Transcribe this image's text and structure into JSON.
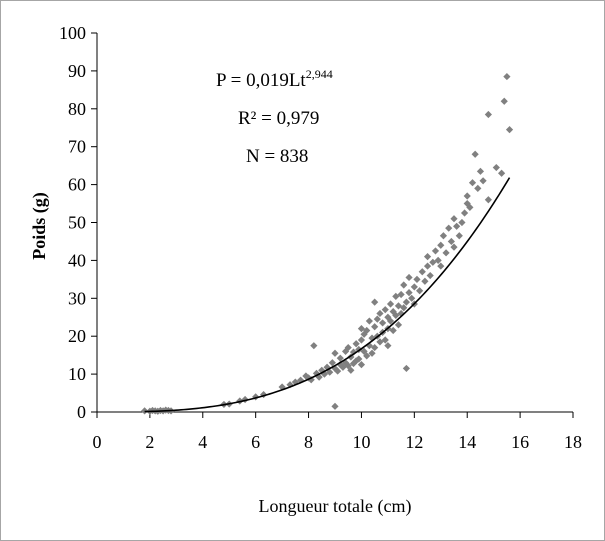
{
  "chart_data": {
    "type": "scatter",
    "title": "",
    "xlabel": "Longueur totale (cm)",
    "ylabel": "Poids (g)",
    "xlim": [
      0,
      18
    ],
    "ylim": [
      0,
      100
    ],
    "xticks": [
      0,
      2,
      4,
      6,
      8,
      10,
      12,
      14,
      16,
      18
    ],
    "yticks": [
      0,
      10,
      20,
      30,
      40,
      50,
      60,
      70,
      80,
      90,
      100
    ],
    "grid": false,
    "legend": "none",
    "marker_color": "#808080",
    "line_color": "#000000",
    "fit": {
      "a": 0.019,
      "b": 2.944,
      "x_range": [
        1.8,
        15.6
      ]
    },
    "annotations": {
      "equation_prefix": "P = 0,019Lt",
      "equation_exponent": "2,944",
      "r2": "R² = 0,979",
      "n": "N = 838"
    },
    "series": [
      {
        "points": [
          [
            1.8,
            0.3
          ],
          [
            2.0,
            0.2
          ],
          [
            2.1,
            0.4
          ],
          [
            2.2,
            0.3
          ],
          [
            2.3,
            0.2
          ],
          [
            2.4,
            0.4
          ],
          [
            2.5,
            0.3
          ],
          [
            2.6,
            0.5
          ],
          [
            2.7,
            0.4
          ],
          [
            2.8,
            0.3
          ],
          [
            4.8,
            2.0
          ],
          [
            5.0,
            2.1
          ],
          [
            5.4,
            2.9
          ],
          [
            5.6,
            3.3
          ],
          [
            6.0,
            4.0
          ],
          [
            6.3,
            4.6
          ],
          [
            7.0,
            6.6
          ],
          [
            7.3,
            7.2
          ],
          [
            7.5,
            7.9
          ],
          [
            7.7,
            8.4
          ],
          [
            7.9,
            9.5
          ],
          [
            8.0,
            9.0
          ],
          [
            8.1,
            8.5
          ],
          [
            8.2,
            17.5
          ],
          [
            8.3,
            10.2
          ],
          [
            8.4,
            9.2
          ],
          [
            8.5,
            11.0
          ],
          [
            8.6,
            10.0
          ],
          [
            8.7,
            11.8
          ],
          [
            8.8,
            10.5
          ],
          [
            8.9,
            13.0
          ],
          [
            9.0,
            11.5
          ],
          [
            9.0,
            1.5
          ],
          [
            9.0,
            15.5
          ],
          [
            9.1,
            10.8
          ],
          [
            9.2,
            12.5
          ],
          [
            9.2,
            14.2
          ],
          [
            9.3,
            11.8
          ],
          [
            9.4,
            16.0
          ],
          [
            9.4,
            13.0
          ],
          [
            9.5,
            12.2
          ],
          [
            9.5,
            17.0
          ],
          [
            9.6,
            14.5
          ],
          [
            9.6,
            11.0
          ],
          [
            9.7,
            15.8
          ],
          [
            9.7,
            12.8
          ],
          [
            9.8,
            18.0
          ],
          [
            9.8,
            13.5
          ],
          [
            9.9,
            16.5
          ],
          [
            9.9,
            14.0
          ],
          [
            10.0,
            19.0
          ],
          [
            10.0,
            12.5
          ],
          [
            10.0,
            22.0
          ],
          [
            10.1,
            16.0
          ],
          [
            10.1,
            20.5
          ],
          [
            10.2,
            14.8
          ],
          [
            10.2,
            21.5
          ],
          [
            10.3,
            17.5
          ],
          [
            10.3,
            24.0
          ],
          [
            10.4,
            15.5
          ],
          [
            10.4,
            19.5
          ],
          [
            10.5,
            22.5
          ],
          [
            10.5,
            17.0
          ],
          [
            10.5,
            29.0
          ],
          [
            10.6,
            20.0
          ],
          [
            10.6,
            24.5
          ],
          [
            10.7,
            18.5
          ],
          [
            10.7,
            26.0
          ],
          [
            10.8,
            21.0
          ],
          [
            10.8,
            23.5
          ],
          [
            10.9,
            19.0
          ],
          [
            10.9,
            27.0
          ],
          [
            11.0,
            22.0
          ],
          [
            11.0,
            25.0
          ],
          [
            11.0,
            17.5
          ],
          [
            11.1,
            24.0
          ],
          [
            11.1,
            28.5
          ],
          [
            11.2,
            21.5
          ],
          [
            11.2,
            26.5
          ],
          [
            11.3,
            25.5
          ],
          [
            11.3,
            30.5
          ],
          [
            11.4,
            23.0
          ],
          [
            11.4,
            28.0
          ],
          [
            11.5,
            26.0
          ],
          [
            11.5,
            31.0
          ],
          [
            11.6,
            27.5
          ],
          [
            11.6,
            33.5
          ],
          [
            11.7,
            11.5
          ],
          [
            11.7,
            29.0
          ],
          [
            11.8,
            31.5
          ],
          [
            11.8,
            35.5
          ],
          [
            11.9,
            30.0
          ],
          [
            12.0,
            33.0
          ],
          [
            12.0,
            28.5
          ],
          [
            12.1,
            35.0
          ],
          [
            12.2,
            32.0
          ],
          [
            12.3,
            37.0
          ],
          [
            12.4,
            34.5
          ],
          [
            12.5,
            38.5
          ],
          [
            12.5,
            41.0
          ],
          [
            12.6,
            36.0
          ],
          [
            12.7,
            39.5
          ],
          [
            12.8,
            42.5
          ],
          [
            12.9,
            40.0
          ],
          [
            13.0,
            44.0
          ],
          [
            13.0,
            38.5
          ],
          [
            13.1,
            46.5
          ],
          [
            13.2,
            42.0
          ],
          [
            13.3,
            48.5
          ],
          [
            13.4,
            45.0
          ],
          [
            13.5,
            51.0
          ],
          [
            13.5,
            43.5
          ],
          [
            13.6,
            49.0
          ],
          [
            13.7,
            46.5
          ],
          [
            13.8,
            50.0
          ],
          [
            13.9,
            52.5
          ],
          [
            14.0,
            57.0
          ],
          [
            14.0,
            55.0
          ],
          [
            14.1,
            54.0
          ],
          [
            14.2,
            60.5
          ],
          [
            14.3,
            68.0
          ],
          [
            14.4,
            59.0
          ],
          [
            14.5,
            63.5
          ],
          [
            14.6,
            61.0
          ],
          [
            14.8,
            56.0
          ],
          [
            14.8,
            78.5
          ],
          [
            15.1,
            64.5
          ],
          [
            15.3,
            63.0
          ],
          [
            15.4,
            82.0
          ],
          [
            15.5,
            88.5
          ],
          [
            15.6,
            74.5
          ]
        ]
      }
    ]
  }
}
